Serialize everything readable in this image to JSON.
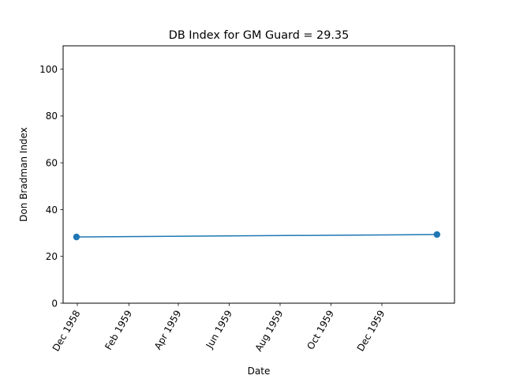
{
  "chart_data": {
    "type": "line",
    "title": "DB Index for GM Guard = 29.35",
    "xlabel": "Date",
    "ylabel": "Don Bradman Index",
    "xlim": [
      "1958-11-14",
      "1960-02-26"
    ],
    "ylim": [
      0,
      110
    ],
    "x_ticks": [
      {
        "date": "1958-12-01",
        "label": "Dec 1958"
      },
      {
        "date": "1959-02-01",
        "label": "Feb 1959"
      },
      {
        "date": "1959-04-01",
        "label": "Apr 1959"
      },
      {
        "date": "1959-06-01",
        "label": "Jun 1959"
      },
      {
        "date": "1959-08-01",
        "label": "Aug 1959"
      },
      {
        "date": "1959-10-01",
        "label": "Oct 1959"
      },
      {
        "date": "1959-12-01",
        "label": "Dec 1959"
      }
    ],
    "y_ticks": [
      0,
      20,
      40,
      60,
      80,
      100
    ],
    "grid": false,
    "series": [
      {
        "color": "#1f77b4",
        "marker": "circle",
        "x": [
          "1958-11-30",
          "1960-02-05"
        ],
        "y": [
          28.3,
          29.35
        ]
      }
    ]
  }
}
